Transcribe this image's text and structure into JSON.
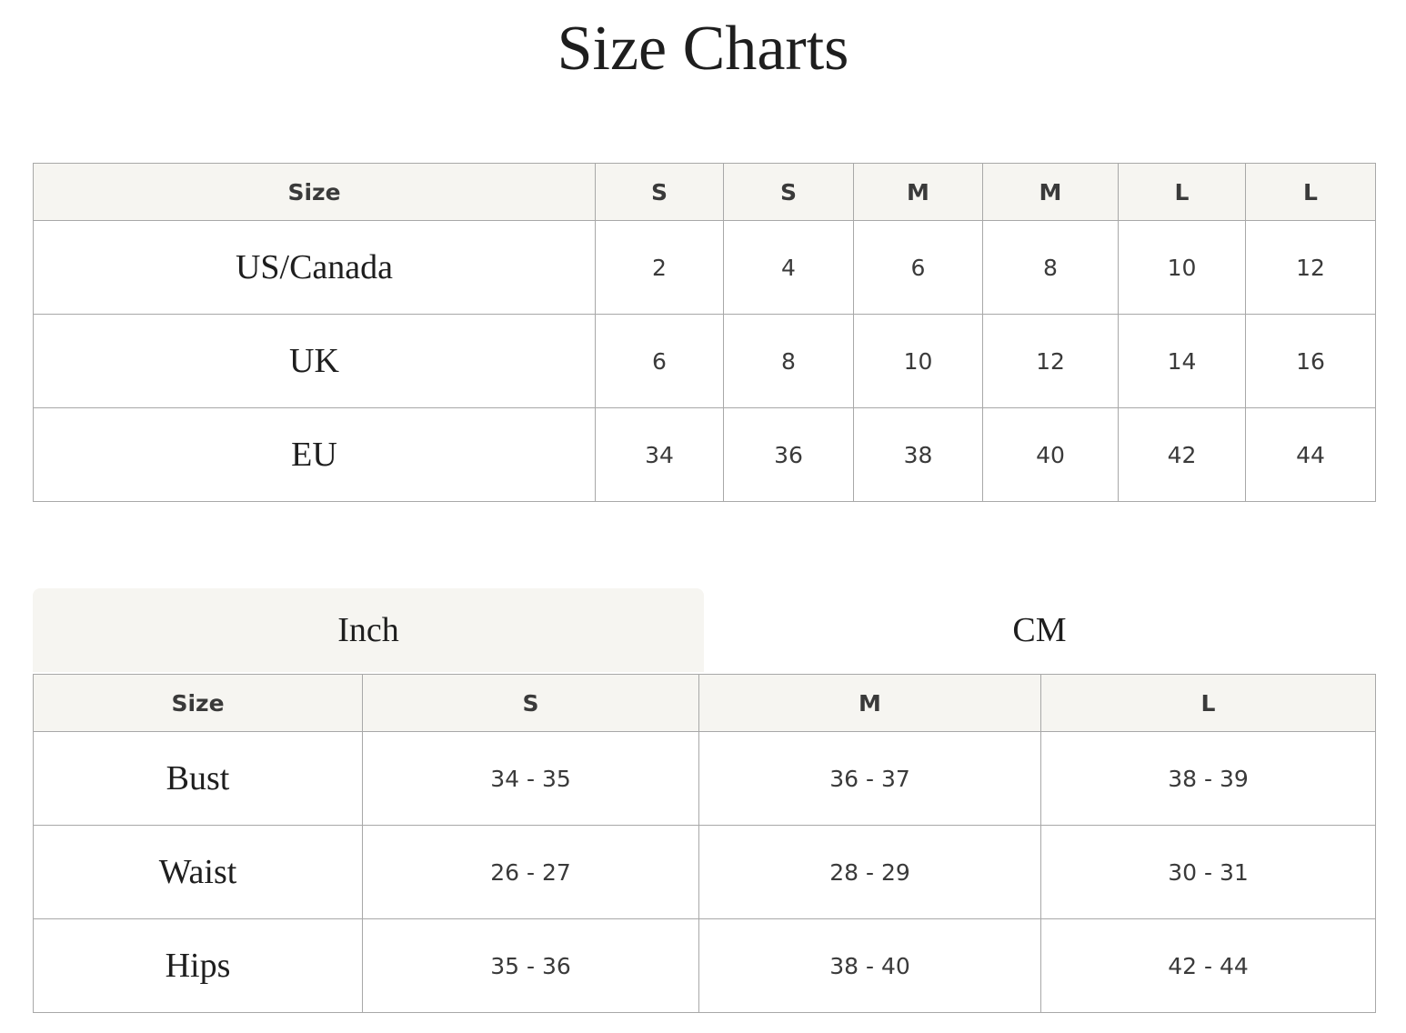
{
  "title": "Size Charts",
  "size_table": {
    "headers": [
      "Size",
      "S",
      "S",
      "M",
      "M",
      "L",
      "L"
    ],
    "rows": [
      {
        "label": "US/Canada",
        "values": [
          "2",
          "4",
          "6",
          "8",
          "10",
          "12"
        ]
      },
      {
        "label": "UK",
        "values": [
          "6",
          "8",
          "10",
          "12",
          "14",
          "16"
        ]
      },
      {
        "label": "EU",
        "values": [
          "34",
          "36",
          "38",
          "40",
          "42",
          "44"
        ]
      }
    ]
  },
  "unit_tabs": {
    "items": [
      "Inch",
      "CM"
    ],
    "active": "Inch"
  },
  "measure_table": {
    "headers": [
      "Size",
      "S",
      "M",
      "L"
    ],
    "rows": [
      {
        "label": "Bust",
        "values": [
          "34 - 35",
          "36 - 37",
          "38 - 39"
        ]
      },
      {
        "label": "Waist",
        "values": [
          "26 - 27",
          "28 - 29",
          "30 - 31"
        ]
      },
      {
        "label": "Hips",
        "values": [
          "35 - 36",
          "38 - 40",
          "42 - 44"
        ]
      }
    ]
  }
}
